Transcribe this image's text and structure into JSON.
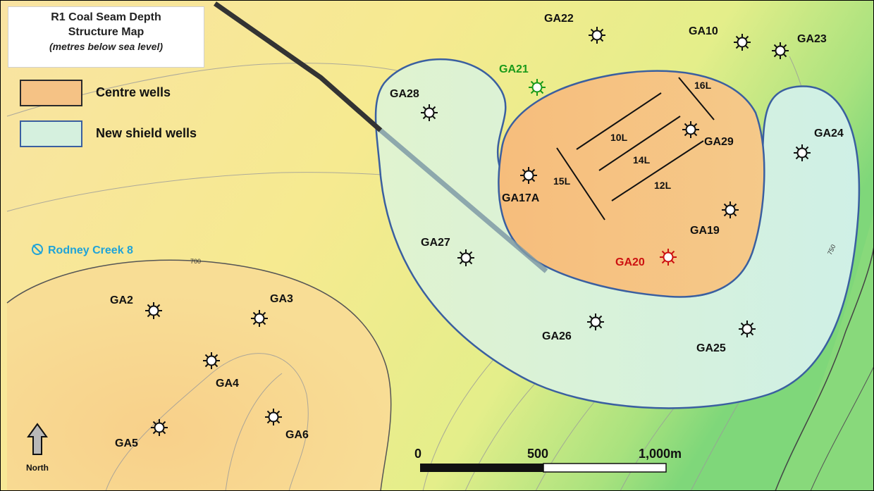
{
  "title": {
    "line1": "R1 Coal Seam Depth",
    "line2": "Structure Map",
    "line3": "(metres below sea level)"
  },
  "legend": [
    {
      "label": "Centre wells",
      "fill": "#f5c285",
      "border": "#2b2b2b"
    },
    {
      "label": "New shield wells",
      "fill": "#d5f0de",
      "border": "#3a5fa0"
    }
  ],
  "wells": [
    {
      "id": "GA22",
      "label": "GA22",
      "color": "#111111"
    },
    {
      "id": "GA10",
      "label": "GA10",
      "color": "#111111"
    },
    {
      "id": "GA23",
      "label": "GA23",
      "color": "#111111"
    },
    {
      "id": "GA21",
      "label": "GA21",
      "color": "#1a9a1a"
    },
    {
      "id": "GA28",
      "label": "GA28",
      "color": "#111111"
    },
    {
      "id": "GA29",
      "label": "GA29",
      "color": "#111111"
    },
    {
      "id": "GA24",
      "label": "GA24",
      "color": "#111111"
    },
    {
      "id": "GA17A",
      "label": "GA17A",
      "color": "#111111"
    },
    {
      "id": "GA19",
      "label": "GA19",
      "color": "#111111"
    },
    {
      "id": "GA27",
      "label": "GA27",
      "color": "#111111"
    },
    {
      "id": "GA20",
      "label": "GA20",
      "color": "#cc1111"
    },
    {
      "id": "GA26",
      "label": "GA26",
      "color": "#111111"
    },
    {
      "id": "GA25",
      "label": "GA25",
      "color": "#111111"
    },
    {
      "id": "GA2",
      "label": "GA2",
      "color": "#111111"
    },
    {
      "id": "GA3",
      "label": "GA3",
      "color": "#111111"
    },
    {
      "id": "GA4",
      "label": "GA4",
      "color": "#111111"
    },
    {
      "id": "GA5",
      "label": "GA5",
      "color": "#111111"
    },
    {
      "id": "GA6",
      "label": "GA6",
      "color": "#111111"
    }
  ],
  "laterals": [
    "16L",
    "10L",
    "14L",
    "15L",
    "12L"
  ],
  "rodney": {
    "label": "Rodney Creek 8",
    "color": "#1fa3d8"
  },
  "contours": {
    "c700": "700",
    "c750": "750"
  },
  "scale": {
    "zero": "0",
    "mid": "500",
    "end": "1,000m"
  },
  "north": {
    "label": "North"
  }
}
